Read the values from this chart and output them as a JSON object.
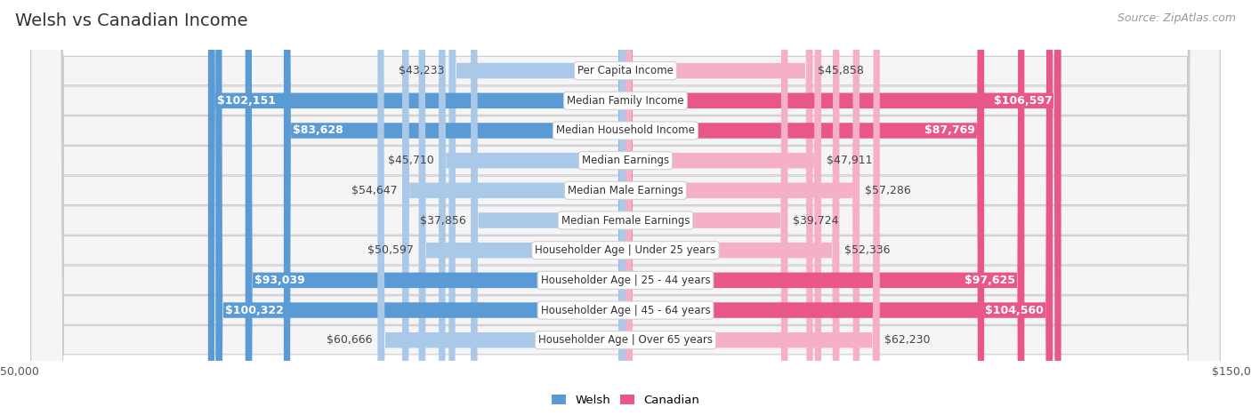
{
  "title": "Welsh vs Canadian Income",
  "source": "Source: ZipAtlas.com",
  "categories": [
    "Per Capita Income",
    "Median Family Income",
    "Median Household Income",
    "Median Earnings",
    "Median Male Earnings",
    "Median Female Earnings",
    "Householder Age | Under 25 years",
    "Householder Age | 25 - 44 years",
    "Householder Age | 45 - 64 years",
    "Householder Age | Over 65 years"
  ],
  "welsh_values": [
    43233,
    102151,
    83628,
    45710,
    54647,
    37856,
    50597,
    93039,
    100322,
    60666
  ],
  "canadian_values": [
    45858,
    106597,
    87769,
    47911,
    57286,
    39724,
    52336,
    97625,
    104560,
    62230
  ],
  "welsh_labels": [
    "$43,233",
    "$102,151",
    "$83,628",
    "$45,710",
    "$54,647",
    "$37,856",
    "$50,597",
    "$93,039",
    "$100,322",
    "$60,666"
  ],
  "canadian_labels": [
    "$45,858",
    "$106,597",
    "$87,769",
    "$47,911",
    "$57,286",
    "$39,724",
    "$52,336",
    "$97,625",
    "$104,560",
    "$62,230"
  ],
  "welsh_color_light": "#aac9e8",
  "welsh_color_dark": "#5b9bd5",
  "canadian_color_light": "#f5afc8",
  "canadian_color_dark": "#e8568a",
  "max_value": 150000,
  "row_bg_outer": "#e8e8e8",
  "row_bg_inner": "#f8f8f8",
  "large_bar_threshold": 80000,
  "legend_welsh": "Welsh",
  "legend_canadian": "Canadian",
  "title_fontsize": 14,
  "source_fontsize": 9,
  "bar_label_fontsize": 9,
  "category_fontsize": 8.5,
  "axis_label_fontsize": 9
}
